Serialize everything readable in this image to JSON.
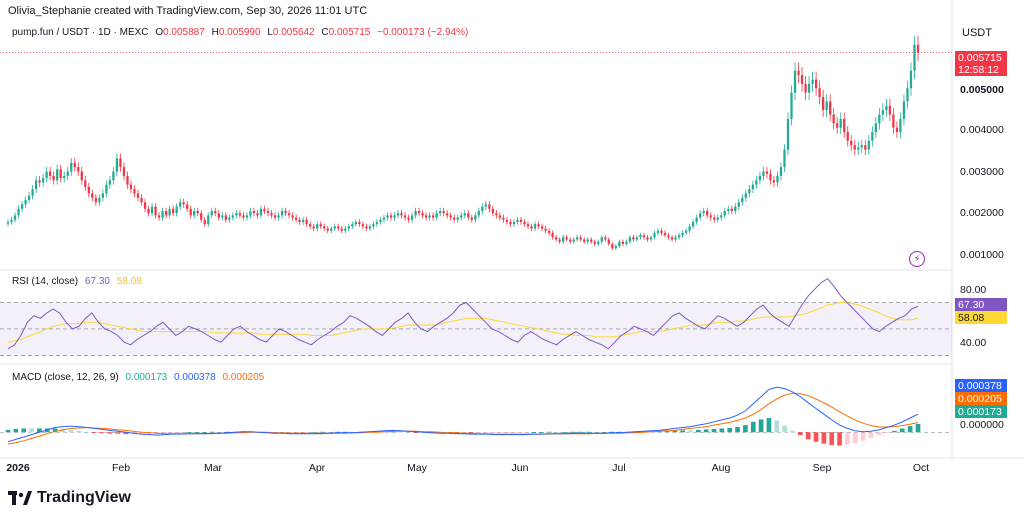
{
  "header": {
    "attribution": "Olivia_Stephanie created with TradingView.com, Sep 30, 2026 11:01 UTC"
  },
  "ohlc": {
    "symbol": "pump.fun / USDT · 1D · MEXC",
    "o_label": "O",
    "o_value": "0.005887",
    "h_label": "H",
    "h_value": "0.005990",
    "l_label": "L",
    "l_value": "0.005642",
    "c_label": "C",
    "c_value": "0.005715",
    "change": "−0.000173 (−2.94%)"
  },
  "currency": "USDT",
  "price_axis": {
    "labels": [
      "0.005000",
      "0.004000",
      "0.003000",
      "0.002000",
      "0.001000"
    ],
    "last_price": "0.005715",
    "countdown": "12:58:12"
  },
  "rsi": {
    "title": "RSI (14, close)",
    "value": "67.30",
    "ma_value": "58.08",
    "axis_labels": [
      "80.00",
      "40.00"
    ]
  },
  "macd": {
    "title": "MACD (close, 12, 26, 9)",
    "hist_value": "0.000173",
    "macd_value": "0.000378",
    "signal_value": "0.000205",
    "axis_label": "0.000000"
  },
  "time_axis": {
    "labels": [
      "2026",
      "Feb",
      "Mar",
      "Apr",
      "May",
      "Jun",
      "Jul",
      "Aug",
      "Sep",
      "Oct"
    ]
  },
  "brand": {
    "name": "TradingView"
  },
  "colors": {
    "up": "#22ab94",
    "down": "#f23645",
    "rsi": "#7e57c2",
    "rsi_ma": "#fdd835",
    "macd": "#2962ff",
    "signal": "#ff6d00"
  },
  "chart_data": {
    "type": "candlestick",
    "price_ylim": [
      0.0008,
      0.006
    ],
    "rsi_ylim": [
      25,
      90
    ],
    "rsi_bands": [
      70,
      30
    ],
    "macd_ylim": [
      -0.0005,
      0.0011
    ],
    "closes": [
      0.00185,
      0.0019,
      0.002,
      0.00215,
      0.00225,
      0.00235,
      0.00245,
      0.0026,
      0.0028,
      0.00275,
      0.00285,
      0.003,
      0.0029,
      0.0028,
      0.00305,
      0.00285,
      0.0029,
      0.003,
      0.0032,
      0.0031,
      0.003,
      0.0028,
      0.00265,
      0.0025,
      0.0024,
      0.0023,
      0.0024,
      0.0025,
      0.0027,
      0.0028,
      0.003,
      0.0033,
      0.0031,
      0.0029,
      0.0027,
      0.0026,
      0.0025,
      0.0024,
      0.0023,
      0.00215,
      0.00205,
      0.0022,
      0.002,
      0.00195,
      0.0021,
      0.002,
      0.00215,
      0.00205,
      0.0022,
      0.0023,
      0.00225,
      0.00215,
      0.002,
      0.0021,
      0.00205,
      0.0019,
      0.0018,
      0.002,
      0.0021,
      0.00205,
      0.00195,
      0.002,
      0.0019,
      0.00195,
      0.002,
      0.00205,
      0.002,
      0.00195,
      0.002,
      0.0021,
      0.00205,
      0.002,
      0.00215,
      0.0021,
      0.00205,
      0.002,
      0.00195,
      0.002,
      0.0021,
      0.00205,
      0.002,
      0.00195,
      0.0019,
      0.00185,
      0.0019,
      0.0018,
      0.00175,
      0.0017,
      0.0018,
      0.00175,
      0.0017,
      0.00165,
      0.0017,
      0.00175,
      0.0017,
      0.00165,
      0.0017,
      0.00175,
      0.0018,
      0.00185,
      0.0018,
      0.00175,
      0.0017,
      0.00175,
      0.0018,
      0.00185,
      0.0019,
      0.00195,
      0.002,
      0.00195,
      0.002,
      0.00205,
      0.002,
      0.00195,
      0.0019,
      0.002,
      0.0021,
      0.00205,
      0.002,
      0.00195,
      0.002,
      0.00195,
      0.00205,
      0.0021,
      0.00205,
      0.002,
      0.00195,
      0.0019,
      0.00195,
      0.002,
      0.00205,
      0.00195,
      0.0019,
      0.002,
      0.0021,
      0.0022,
      0.00225,
      0.00215,
      0.00205,
      0.002,
      0.00195,
      0.0019,
      0.00185,
      0.0018,
      0.00185,
      0.0019,
      0.00185,
      0.0018,
      0.00175,
      0.0017,
      0.0018,
      0.00175,
      0.0017,
      0.00165,
      0.0016,
      0.0015,
      0.00145,
      0.0014,
      0.0015,
      0.00145,
      0.0014,
      0.00145,
      0.0015,
      0.00145,
      0.0014,
      0.00145,
      0.0014,
      0.00135,
      0.0014,
      0.0015,
      0.00145,
      0.00135,
      0.00125,
      0.0013,
      0.0014,
      0.00135,
      0.0014,
      0.0015,
      0.00145,
      0.0015,
      0.00155,
      0.0015,
      0.00145,
      0.0015,
      0.0016,
      0.00165,
      0.0016,
      0.00155,
      0.0015,
      0.00145,
      0.0015,
      0.00155,
      0.0016,
      0.00165,
      0.00175,
      0.00185,
      0.00195,
      0.00205,
      0.0021,
      0.002,
      0.00195,
      0.0019,
      0.00195,
      0.002,
      0.0021,
      0.00215,
      0.0021,
      0.0022,
      0.0023,
      0.0024,
      0.0025,
      0.0026,
      0.0027,
      0.0028,
      0.0029,
      0.003,
      0.00295,
      0.0028,
      0.00275,
      0.0029,
      0.0031,
      0.0035,
      0.0042,
      0.0048,
      0.0053,
      0.0052,
      0.005,
      0.0048,
      0.005,
      0.0051,
      0.0049,
      0.0047,
      0.0044,
      0.0046,
      0.0043,
      0.0041,
      0.004,
      0.0042,
      0.0039,
      0.0037,
      0.0036,
      0.0035,
      0.00355,
      0.0036,
      0.0035,
      0.0037,
      0.0039,
      0.0041,
      0.0043,
      0.0044,
      0.0045,
      0.0043,
      0.004,
      0.0039,
      0.0042,
      0.0046,
      0.0049,
      0.0053,
      0.00589,
      0.005715
    ],
    "rsi_values": [
      35,
      38,
      45,
      55,
      60,
      58,
      62,
      65,
      62,
      55,
      50,
      52,
      58,
      62,
      55,
      50,
      48,
      45,
      40,
      38,
      42,
      45,
      48,
      52,
      55,
      50,
      45,
      48,
      52,
      50,
      48,
      45,
      42,
      40,
      45,
      50,
      52,
      48,
      45,
      42,
      40,
      45,
      50,
      48,
      45,
      42,
      40,
      38,
      42,
      45,
      48,
      52,
      55,
      60,
      58,
      55,
      52,
      48,
      45,
      50,
      55,
      58,
      62,
      55,
      50,
      48,
      52,
      55,
      58,
      62,
      68,
      70,
      65,
      60,
      55,
      50,
      48,
      45,
      42,
      40,
      45,
      48,
      45,
      42,
      40,
      38,
      42,
      45,
      48,
      45,
      42,
      40,
      38,
      35,
      40,
      45,
      48,
      52,
      50,
      48,
      45,
      50,
      55,
      60,
      62,
      58,
      55,
      52,
      50,
      55,
      60,
      58,
      55,
      52,
      55,
      60,
      65,
      68,
      62,
      58,
      55,
      52,
      60,
      68,
      75,
      80,
      85,
      88,
      82,
      75,
      70,
      65,
      60,
      55,
      50,
      48,
      52,
      55,
      58,
      60,
      65,
      67
    ],
    "rsi_ma_values": [
      40,
      41,
      42,
      44,
      46,
      48,
      50,
      52,
      53,
      54,
      54,
      54,
      55,
      55,
      55,
      54,
      53,
      52,
      51,
      50,
      49,
      48,
      48,
      48,
      48,
      48,
      48,
      48,
      48,
      48,
      48,
      48,
      47,
      47,
      47,
      47,
      47,
      47,
      47,
      46,
      46,
      46,
      46,
      46,
      46,
      46,
      46,
      45,
      45,
      45,
      45,
      46,
      47,
      48,
      49,
      50,
      50,
      50,
      50,
      50,
      51,
      52,
      53,
      53,
      53,
      53,
      53,
      54,
      55,
      56,
      57,
      58,
      58,
      58,
      58,
      57,
      56,
      55,
      54,
      53,
      52,
      51,
      50,
      49,
      48,
      47,
      46,
      46,
      45,
      45,
      45,
      44,
      44,
      44,
      44,
      45,
      46,
      47,
      48,
      48,
      48,
      48,
      49,
      50,
      51,
      52,
      53,
      53,
      53,
      54,
      55,
      55,
      55,
      56,
      56,
      57,
      58,
      59,
      59,
      59,
      59,
      59,
      60,
      61,
      62,
      64,
      66,
      68,
      69,
      70,
      70,
      69,
      68,
      66,
      64,
      62,
      60,
      58,
      57,
      57,
      57,
      58
    ],
    "macd_values": [
      -0.0002,
      -0.00015,
      -0.0001,
      -5e-05,
      0,
      5e-05,
      0.0001,
      0.00012,
      0.00013,
      0.00012,
      0.0001,
      8e-05,
      6e-05,
      4e-05,
      2e-05,
      0,
      -2e-05,
      -4e-05,
      -5e-05,
      -6e-05,
      -5e-05,
      -4e-05,
      -4e-05,
      -3e-05,
      -3e-05,
      -3e-05,
      -2e-05,
      -2e-05,
      -1e-05,
      0,
      1e-05,
      1e-05,
      0,
      -1e-05,
      -2e-05,
      -2e-05,
      -3e-05,
      -3e-05,
      -3e-05,
      -3e-05,
      -2e-05,
      -2e-05,
      -1e-05,
      -1e-05,
      -1e-05,
      0,
      1e-05,
      2e-05,
      3e-05,
      4e-05,
      3e-05,
      2e-05,
      1e-05,
      0,
      -1e-05,
      -2e-05,
      -2e-05,
      -3e-05,
      -3e-05,
      -4e-05,
      -4e-05,
      -4e-05,
      -5e-05,
      -5e-05,
      -5e-05,
      -5e-05,
      -5e-05,
      -4e-05,
      -4e-05,
      -3e-05,
      -3e-05,
      -3e-05,
      -2e-05,
      -2e-05,
      -2e-05,
      -2e-05,
      -2e-05,
      -1e-05,
      -1e-05,
      0,
      1e-05,
      2e-05,
      3e-05,
      4e-05,
      6e-05,
      8e-05,
      0.0001,
      0.00012,
      0.00015,
      0.00018,
      0.00022,
      0.00026,
      0.0003,
      0.00036,
      0.00045,
      0.0006,
      0.00075,
      0.0009,
      0.00095,
      0.00092,
      0.00085,
      0.00075,
      0.00062,
      0.0005,
      0.00038,
      0.00026,
      0.00015,
      8e-05,
      3e-05,
      1e-05,
      2e-05,
      5e-05,
      0.0001,
      0.00015,
      0.00022,
      0.0003,
      0.00038
    ],
    "signal_values": [
      -0.00025,
      -0.00022,
      -0.00018,
      -0.00013,
      -8e-05,
      -3e-05,
      2e-05,
      5e-05,
      8e-05,
      9e-05,
      0.0001,
      9e-05,
      8e-05,
      7e-05,
      5e-05,
      4e-05,
      2e-05,
      0,
      -1e-05,
      -2e-05,
      -3e-05,
      -3e-05,
      -3e-05,
      -3e-05,
      -3e-05,
      -3e-05,
      -3e-05,
      -2e-05,
      -2e-05,
      -1e-05,
      -1e-05,
      0,
      0,
      0,
      -1e-05,
      -1e-05,
      -2e-05,
      -2e-05,
      -2e-05,
      -3e-05,
      -3e-05,
      -2e-05,
      -2e-05,
      -2e-05,
      -1e-05,
      -1e-05,
      0,
      0,
      1e-05,
      2e-05,
      2e-05,
      2e-05,
      2e-05,
      1e-05,
      1e-05,
      0,
      -1e-05,
      -1e-05,
      -2e-05,
      -2e-05,
      -3e-05,
      -3e-05,
      -4e-05,
      -4e-05,
      -4e-05,
      -4e-05,
      -4e-05,
      -4e-05,
      -4e-05,
      -4e-05,
      -3e-05,
      -3e-05,
      -3e-05,
      -3e-05,
      -3e-05,
      -2e-05,
      -2e-05,
      -2e-05,
      -2e-05,
      -1e-05,
      -1e-05,
      0,
      1e-05,
      2e-05,
      3e-05,
      4e-05,
      6e-05,
      8e-05,
      0.0001,
      0.00012,
      0.00015,
      0.00018,
      0.00021,
      0.00025,
      0.0003,
      0.00038,
      0.00048,
      0.0006,
      0.0007,
      0.00078,
      0.00082,
      0.00081,
      0.00077,
      0.0007,
      0.00062,
      0.00053,
      0.00043,
      0.00034,
      0.00026,
      0.00019,
      0.00014,
      0.00011,
      0.00011,
      0.00012,
      0.00014,
      0.00017,
      0.000205
    ]
  }
}
